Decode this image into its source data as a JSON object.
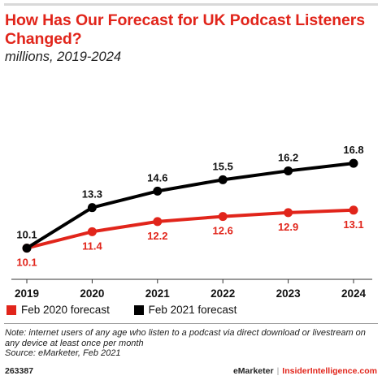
{
  "header": {
    "title": "How Has Our Forecast for UK Podcast Listeners Changed?",
    "subtitle": "millions, 2019-2024"
  },
  "chart_data": {
    "type": "line",
    "x": [
      "2019",
      "2020",
      "2021",
      "2022",
      "2023",
      "2024"
    ],
    "series": [
      {
        "name": "Feb 2020 forecast",
        "color": "#e1251b",
        "values": [
          10.1,
          11.4,
          12.2,
          12.6,
          12.9,
          13.1
        ],
        "labels": [
          "10.1",
          "11.4",
          "12.2",
          "12.6",
          "12.9",
          "13.1"
        ]
      },
      {
        "name": "Feb 2021 forecast",
        "color": "#000000",
        "values": [
          10.1,
          13.3,
          14.6,
          15.5,
          16.2,
          16.8
        ],
        "labels": [
          "10.1",
          "13.3",
          "14.6",
          "15.5",
          "16.2",
          "16.8"
        ]
      }
    ],
    "grid": false,
    "legend": "bottom-left"
  },
  "note": {
    "line1": "Note: internet users of any age who listen to a podcast via direct download or livestream on",
    "line2": "any device at least once per month",
    "source": "Source: eMarketer, Feb 2021"
  },
  "footer": {
    "chart_id": "263387",
    "brand": "eMarketer",
    "separator": "|",
    "site": "InsiderIntelligence.com"
  }
}
